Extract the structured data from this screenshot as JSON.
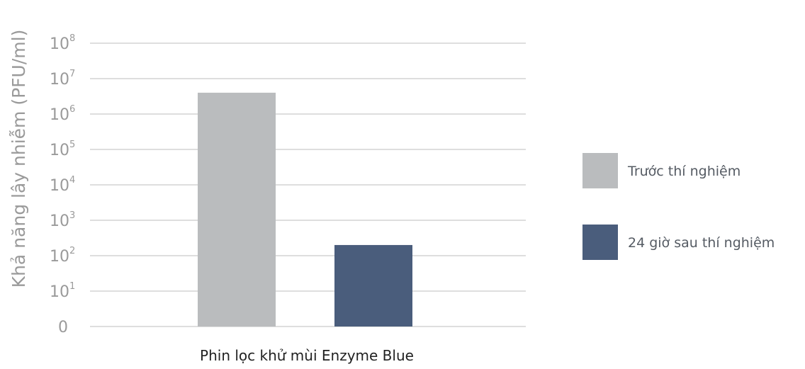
{
  "chart_data": {
    "type": "bar",
    "categories": [
      "Phin lọc khử mùi Enzyme Blue"
    ],
    "ylabel": "Khả năng lây nhiễm (PFU/ml)",
    "xlabel": "",
    "yscale": "log",
    "yticks": [
      {
        "base": "0",
        "exp": ""
      },
      {
        "base": "10",
        "exp": "1"
      },
      {
        "base": "10",
        "exp": "2"
      },
      {
        "base": "10",
        "exp": "3"
      },
      {
        "base": "10",
        "exp": "4"
      },
      {
        "base": "10",
        "exp": "5"
      },
      {
        "base": "10",
        "exp": "6"
      },
      {
        "base": "10",
        "exp": "7"
      },
      {
        "base": "10",
        "exp": "8"
      }
    ],
    "ylim_log10": [
      0,
      8
    ],
    "grid": true,
    "legend_position": "right",
    "series": [
      {
        "name": "Trước thí nghiệm",
        "values": [
          4000000
        ],
        "color": "#babcbe"
      },
      {
        "name": "24 giờ sau thí nghiệm",
        "values": [
          200
        ],
        "color": "#4a5d7c"
      }
    ]
  }
}
